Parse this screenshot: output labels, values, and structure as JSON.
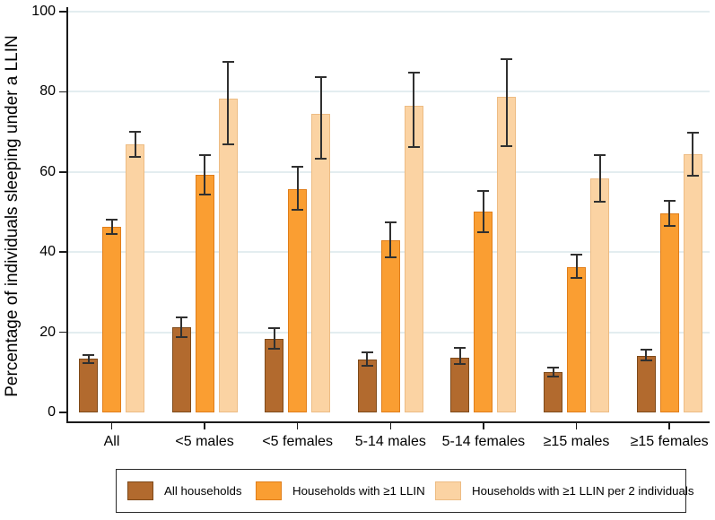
{
  "figure": {
    "background": "#ffffff",
    "axis_color": "#1a1a1a",
    "gridline_color": "#e3edf0",
    "error_bar_color": "#303030"
  },
  "chart_data": {
    "type": "bar",
    "title": "",
    "xlabel": "",
    "ylabel": "Percentage of individuals sleeping under a LLIN",
    "ylim": [
      0,
      100
    ],
    "yticks": [
      0,
      20,
      40,
      60,
      80,
      100
    ],
    "grid": true,
    "legend_position": "bottom",
    "error_bars": "95% CI",
    "categories": [
      "All",
      "<5 males",
      "<5 females",
      "5-14 males",
      "5-14 females",
      "≥15 males",
      "≥15 females"
    ],
    "series": [
      {
        "name": "All households",
        "color": "#b26a2e",
        "border_color": "#7e4a1a",
        "values": [
          13.4,
          21.2,
          18.4,
          13.2,
          13.7,
          10.1,
          14.2
        ],
        "ci_low": [
          12.4,
          18.7,
          15.8,
          11.6,
          12.0,
          8.9,
          12.9
        ],
        "ci_high": [
          14.4,
          23.7,
          21.0,
          14.9,
          16.0,
          11.2,
          15.7
        ]
      },
      {
        "name": "Households with ≥1 LLIN",
        "color": "#fa9e32",
        "border_color": "#e07e1a",
        "values": [
          46.3,
          59.2,
          55.7,
          42.9,
          50.2,
          36.3,
          49.6
        ],
        "ci_low": [
          44.5,
          54.3,
          50.5,
          38.8,
          45.0,
          33.6,
          46.6
        ],
        "ci_high": [
          48.2,
          64.3,
          61.3,
          47.5,
          55.3,
          39.3,
          52.8
        ]
      },
      {
        "name": "Households with ≥1 LLIN per 2 individuals",
        "color": "#fbd3a3",
        "border_color": "#edbc84",
        "values": [
          66.8,
          78.3,
          74.4,
          76.5,
          78.8,
          58.5,
          64.4
        ],
        "ci_low": [
          63.7,
          66.9,
          63.3,
          66.3,
          66.5,
          52.5,
          59.1
        ],
        "ci_high": [
          70.0,
          87.4,
          83.7,
          84.8,
          88.2,
          64.2,
          69.9
        ]
      }
    ]
  }
}
